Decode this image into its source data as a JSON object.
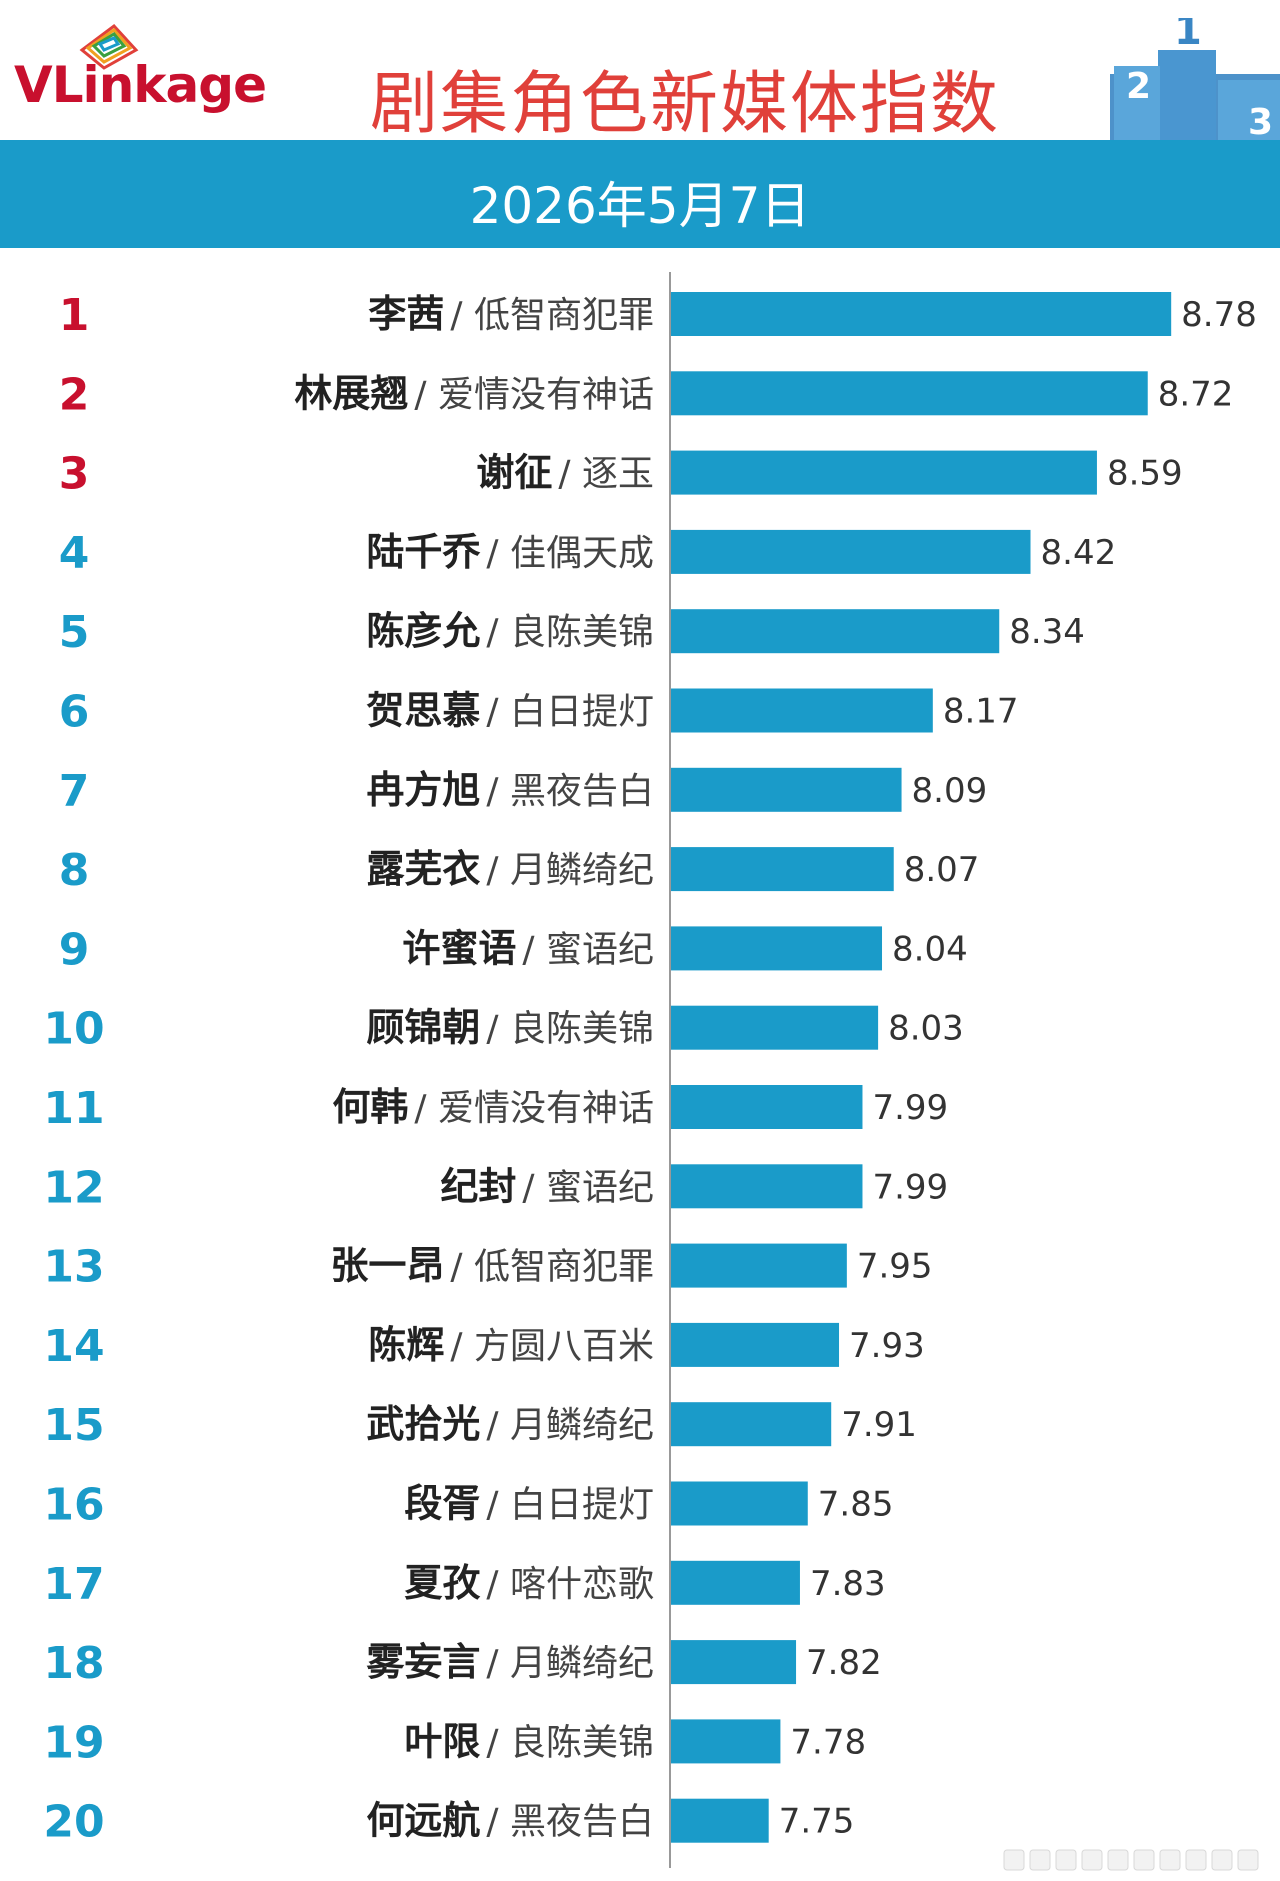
{
  "header": {
    "logo_text": "VLinkage",
    "title": "剧集角色新媒体指数",
    "podium_labels": [
      "2",
      "1",
      "3"
    ]
  },
  "date_bar": {
    "date": "2026年5月7日"
  },
  "colors": {
    "bar": "#1a9bc9",
    "rank_top": "#c8102e",
    "rank_rest": "#1a9bc9",
    "title": "#e0403a",
    "podium": "#3a86c4"
  },
  "chart_data": {
    "type": "bar",
    "orientation": "horizontal",
    "title": "剧集角色新媒体指数",
    "subtitle": "2026年5月7日",
    "xlim": [
      7.5,
      8.8
    ],
    "grid": false,
    "rows": [
      {
        "rank": "1",
        "name": "李茜",
        "drama": "低智商犯罪",
        "value": 8.78
      },
      {
        "rank": "2",
        "name": "林展翘",
        "drama": "爱情没有神话",
        "value": 8.72
      },
      {
        "rank": "3",
        "name": "谢征",
        "drama": "逐玉",
        "value": 8.59
      },
      {
        "rank": "4",
        "name": "陆千乔",
        "drama": "佳偶天成",
        "value": 8.42
      },
      {
        "rank": "5",
        "name": "陈彦允",
        "drama": "良陈美锦",
        "value": 8.34
      },
      {
        "rank": "6",
        "name": "贺思慕",
        "drama": "白日提灯",
        "value": 8.17
      },
      {
        "rank": "7",
        "name": "冉方旭",
        "drama": "黑夜告白",
        "value": 8.09
      },
      {
        "rank": "8",
        "name": "露芜衣",
        "drama": "月鳞绮纪",
        "value": 8.07
      },
      {
        "rank": "9",
        "name": "许蜜语",
        "drama": "蜜语纪",
        "value": 8.04
      },
      {
        "rank": "10",
        "name": "顾锦朝",
        "drama": "良陈美锦",
        "value": 8.03
      },
      {
        "rank": "11",
        "name": "何韩",
        "drama": "爱情没有神话",
        "value": 7.99
      },
      {
        "rank": "12",
        "name": "纪封",
        "drama": "蜜语纪",
        "value": 7.99
      },
      {
        "rank": "13",
        "name": "张一昂",
        "drama": "低智商犯罪",
        "value": 7.95
      },
      {
        "rank": "14",
        "name": "陈辉",
        "drama": "方圆八百米",
        "value": 7.93
      },
      {
        "rank": "15",
        "name": "武拾光",
        "drama": "月鳞绮纪",
        "value": 7.91
      },
      {
        "rank": "16",
        "name": "段胥",
        "drama": "白日提灯",
        "value": 7.85
      },
      {
        "rank": "17",
        "name": "夏孜",
        "drama": "喀什恋歌",
        "value": 7.83
      },
      {
        "rank": "18",
        "name": "雾妄言",
        "drama": "月鳞绮纪",
        "value": 7.82
      },
      {
        "rank": "19",
        "name": "叶限",
        "drama": "良陈美锦",
        "value": 7.78
      },
      {
        "rank": "20",
        "name": "何远航",
        "drama": "黑夜告白",
        "value": 7.75
      }
    ]
  }
}
